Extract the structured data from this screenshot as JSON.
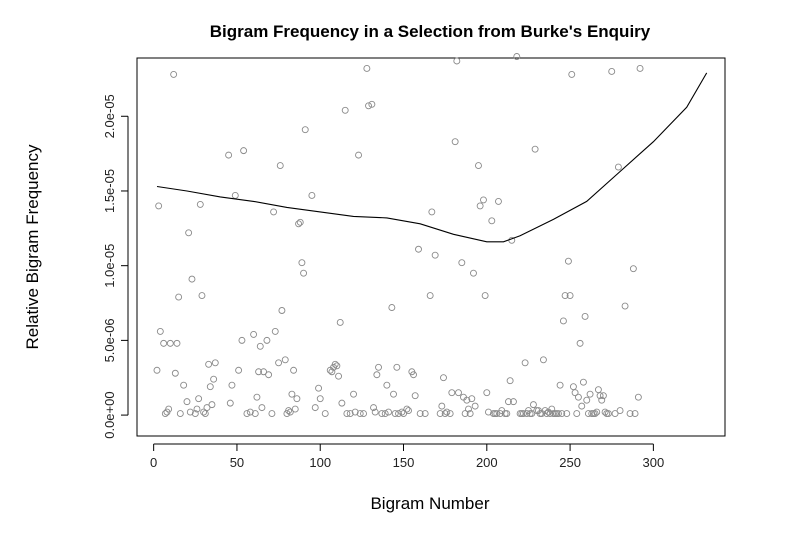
{
  "chart_data": {
    "type": "scatter",
    "title": "Bigram Frequency in a Selection from Burke's Enquiry",
    "xlabel": "Bigram Number",
    "ylabel": "Relative Bigram Frequency",
    "xlim": [
      -10,
      343
    ],
    "ylim": [
      -1.4e-06,
      2.39e-05
    ],
    "x_ticks": [
      0,
      50,
      100,
      150,
      200,
      250,
      300
    ],
    "x_tick_labels": [
      "0",
      "50",
      "100",
      "150",
      "200",
      "250",
      "300"
    ],
    "y_ticks": [
      0,
      5e-06,
      1e-05,
      1.5e-05,
      2e-05
    ],
    "y_tick_labels": [
      "0.0e+00",
      "5.0e-06",
      "1.0e-05",
      "1.5e-05",
      "2.0e-05"
    ],
    "grid": false,
    "legend": "none",
    "point_color": "#8a8a8a",
    "points": [
      [
        2,
        3e-06
      ],
      [
        3,
        1.4e-05
      ],
      [
        4,
        5.6e-06
      ],
      [
        6,
        4.8e-06
      ],
      [
        7,
        1e-07
      ],
      [
        8,
        2e-07
      ],
      [
        9,
        4e-07
      ],
      [
        10,
        4.8e-06
      ],
      [
        12,
        2.28e-05
      ],
      [
        13,
        2.8e-06
      ],
      [
        14,
        4.8e-06
      ],
      [
        15,
        7.9e-06
      ],
      [
        16,
        1e-07
      ],
      [
        18,
        2e-06
      ],
      [
        20,
        9e-07
      ],
      [
        21,
        1.22e-05
      ],
      [
        22,
        2e-07
      ],
      [
        23,
        9.1e-06
      ],
      [
        25,
        1e-07
      ],
      [
        26,
        4e-07
      ],
      [
        27,
        1.1e-06
      ],
      [
        28,
        1.41e-05
      ],
      [
        29,
        8e-06
      ],
      [
        30,
        2e-07
      ],
      [
        31,
        1e-07
      ],
      [
        32,
        5e-07
      ],
      [
        33,
        3.4e-06
      ],
      [
        34,
        1.9e-06
      ],
      [
        35,
        7e-07
      ],
      [
        36,
        2.4e-06
      ],
      [
        37,
        3.5e-06
      ],
      [
        45,
        1.74e-05
      ],
      [
        46,
        8e-07
      ],
      [
        47,
        2e-06
      ],
      [
        49,
        1.47e-05
      ],
      [
        51,
        3e-06
      ],
      [
        53,
        5e-06
      ],
      [
        54,
        1.77e-05
      ],
      [
        56,
        1e-07
      ],
      [
        58,
        2e-07
      ],
      [
        60,
        5.4e-06
      ],
      [
        61,
        1e-07
      ],
      [
        62,
        1.2e-06
      ],
      [
        63,
        2.9e-06
      ],
      [
        64,
        4.6e-06
      ],
      [
        65,
        5e-07
      ],
      [
        66,
        2.9e-06
      ],
      [
        68,
        5e-06
      ],
      [
        69,
        2.7e-06
      ],
      [
        71,
        1e-07
      ],
      [
        72,
        1.36e-05
      ],
      [
        73,
        5.6e-06
      ],
      [
        75,
        3.5e-06
      ],
      [
        76,
        1.67e-05
      ],
      [
        77,
        7e-06
      ],
      [
        79,
        3.7e-06
      ],
      [
        80,
        1e-07
      ],
      [
        81,
        3e-07
      ],
      [
        82,
        2e-07
      ],
      [
        83,
        1.4e-06
      ],
      [
        84,
        3e-06
      ],
      [
        85,
        4e-07
      ],
      [
        86,
        1.1e-06
      ],
      [
        87,
        1.28e-05
      ],
      [
        88,
        1.29e-05
      ],
      [
        89,
        1.02e-05
      ],
      [
        90,
        9.5e-06
      ],
      [
        91,
        1.91e-05
      ],
      [
        95,
        1.47e-05
      ],
      [
        97,
        5e-07
      ],
      [
        99,
        1.8e-06
      ],
      [
        100,
        1.1e-06
      ],
      [
        103,
        1e-07
      ],
      [
        106,
        3e-06
      ],
      [
        107,
        2.9e-06
      ],
      [
        108,
        3.2e-06
      ],
      [
        109,
        3.4e-06
      ],
      [
        110,
        3.3e-06
      ],
      [
        111,
        2.6e-06
      ],
      [
        112,
        6.2e-06
      ],
      [
        113,
        8e-07
      ],
      [
        115,
        2.04e-05
      ],
      [
        116,
        1e-07
      ],
      [
        118,
        1e-07
      ],
      [
        120,
        1.4e-06
      ],
      [
        121,
        2e-07
      ],
      [
        123,
        1.74e-05
      ],
      [
        124,
        1e-07
      ],
      [
        126,
        1e-07
      ],
      [
        128,
        2.32e-05
      ],
      [
        129,
        2.07e-05
      ],
      [
        131,
        2.08e-05
      ],
      [
        132,
        5e-07
      ],
      [
        133,
        2e-07
      ],
      [
        134,
        2.7e-06
      ],
      [
        135,
        3.2e-06
      ],
      [
        137,
        1e-07
      ],
      [
        139,
        1e-07
      ],
      [
        140,
        2e-06
      ],
      [
        141,
        2e-07
      ],
      [
        143,
        7.2e-06
      ],
      [
        144,
        1.4e-06
      ],
      [
        145,
        1e-07
      ],
      [
        146,
        3.2e-06
      ],
      [
        147,
        1e-07
      ],
      [
        149,
        2e-07
      ],
      [
        150,
        1e-07
      ],
      [
        152,
        4e-07
      ],
      [
        153,
        3e-07
      ],
      [
        155,
        2.9e-06
      ],
      [
        156,
        2.7e-06
      ],
      [
        157,
        1.3e-06
      ],
      [
        159,
        1.11e-05
      ],
      [
        160,
        1e-07
      ],
      [
        163,
        1e-07
      ],
      [
        166,
        8e-06
      ],
      [
        167,
        1.36e-05
      ],
      [
        169,
        1.07e-05
      ],
      [
        172,
        1e-07
      ],
      [
        173,
        6e-07
      ],
      [
        174,
        2.5e-06
      ],
      [
        175,
        1e-07
      ],
      [
        176,
        2e-07
      ],
      [
        178,
        1e-07
      ],
      [
        179,
        1.5e-06
      ],
      [
        181,
        1.83e-05
      ],
      [
        182,
        2.37e-05
      ],
      [
        183,
        1.5e-06
      ],
      [
        185,
        1.02e-05
      ],
      [
        186,
        1.2e-06
      ],
      [
        187,
        1e-07
      ],
      [
        188,
        1e-06
      ],
      [
        189,
        4e-07
      ],
      [
        190,
        1e-07
      ],
      [
        191,
        1.1e-06
      ],
      [
        192,
        9.5e-06
      ],
      [
        193,
        6e-07
      ],
      [
        195,
        1.67e-05
      ],
      [
        196,
        1.4e-05
      ],
      [
        198,
        1.44e-05
      ],
      [
        199,
        8e-06
      ],
      [
        200,
        1.5e-06
      ],
      [
        201,
        2e-07
      ],
      [
        203,
        1.3e-05
      ],
      [
        204,
        1e-07
      ],
      [
        205,
        1e-07
      ],
      [
        206,
        1e-07
      ],
      [
        207,
        1.43e-05
      ],
      [
        208,
        1e-07
      ],
      [
        209,
        3e-07
      ],
      [
        211,
        1e-07
      ],
      [
        212,
        1e-07
      ],
      [
        213,
        9e-07
      ],
      [
        214,
        2.3e-06
      ],
      [
        215,
        1.17e-05
      ],
      [
        216,
        9e-07
      ],
      [
        218,
        2.4e-05
      ],
      [
        220,
        1e-07
      ],
      [
        221,
        1e-07
      ],
      [
        222,
        1e-07
      ],
      [
        223,
        3.5e-06
      ],
      [
        224,
        1e-07
      ],
      [
        225,
        3e-07
      ],
      [
        226,
        1e-07
      ],
      [
        227,
        1e-07
      ],
      [
        228,
        7e-07
      ],
      [
        229,
        1.78e-05
      ],
      [
        230,
        3e-07
      ],
      [
        231,
        3e-07
      ],
      [
        232,
        1e-07
      ],
      [
        233,
        1e-07
      ],
      [
        234,
        3.7e-06
      ],
      [
        235,
        3e-07
      ],
      [
        236,
        1e-07
      ],
      [
        237,
        2e-07
      ],
      [
        238,
        1e-07
      ],
      [
        239,
        4e-07
      ],
      [
        240,
        1e-07
      ],
      [
        241,
        1e-07
      ],
      [
        242,
        1e-07
      ],
      [
        243,
        1e-07
      ],
      [
        244,
        2e-06
      ],
      [
        245,
        1e-07
      ],
      [
        246,
        6.3e-06
      ],
      [
        247,
        8e-06
      ],
      [
        248,
        1e-07
      ],
      [
        249,
        1.03e-05
      ],
      [
        250,
        8e-06
      ],
      [
        251,
        2.28e-05
      ],
      [
        252,
        1.9e-06
      ],
      [
        253,
        1.5e-06
      ],
      [
        254,
        1e-07
      ],
      [
        255,
        1.2e-06
      ],
      [
        256,
        4.8e-06
      ],
      [
        257,
        6e-07
      ],
      [
        258,
        2.2e-06
      ],
      [
        259,
        6.6e-06
      ],
      [
        260,
        1e-06
      ],
      [
        261,
        1e-07
      ],
      [
        262,
        1.4e-06
      ],
      [
        263,
        1e-07
      ],
      [
        264,
        1e-07
      ],
      [
        265,
        1e-07
      ],
      [
        266,
        2e-07
      ],
      [
        267,
        1.7e-06
      ],
      [
        268,
        1.3e-06
      ],
      [
        269,
        1e-06
      ],
      [
        270,
        1.3e-06
      ],
      [
        271,
        2e-07
      ],
      [
        272,
        1e-07
      ],
      [
        273,
        1e-07
      ],
      [
        275,
        2.3e-05
      ],
      [
        277,
        1e-07
      ],
      [
        279,
        1.66e-05
      ],
      [
        280,
        3e-07
      ],
      [
        283,
        7.3e-06
      ],
      [
        286,
        1e-07
      ],
      [
        288,
        9.8e-06
      ],
      [
        289,
        1e-07
      ],
      [
        291,
        1.2e-06
      ],
      [
        292,
        2.32e-05
      ]
    ],
    "trend_line": {
      "x": [
        2,
        20,
        40,
        60,
        80,
        100,
        120,
        140,
        160,
        180,
        200,
        210,
        220,
        240,
        260,
        280,
        300,
        320,
        332
      ],
      "y": [
        1.53e-05,
        1.5e-05,
        1.46e-05,
        1.43e-05,
        1.39e-05,
        1.36e-05,
        1.33e-05,
        1.32e-05,
        1.28e-05,
        1.21e-05,
        1.16e-05,
        1.16e-05,
        1.2e-05,
        1.31e-05,
        1.43e-05,
        1.63e-05,
        1.83e-05,
        2.06e-05,
        2.29e-05
      ]
    }
  }
}
